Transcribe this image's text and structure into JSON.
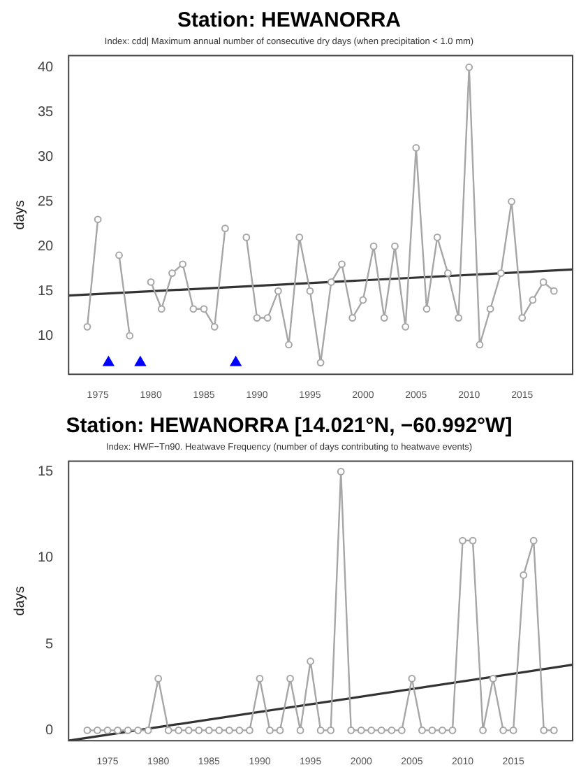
{
  "chart_data": [
    {
      "type": "line",
      "title": "Station: HEWANORRA",
      "subtitle": "Index: cdd| Maximum annual number of consecutive dry days (when precipitation < 1.0 mm)",
      "ylabel": "days",
      "x": [
        1974,
        1975,
        1976,
        1977,
        1978,
        1979,
        1980,
        1981,
        1982,
        1983,
        1984,
        1985,
        1986,
        1987,
        1988,
        1989,
        1990,
        1991,
        1992,
        1993,
        1994,
        1995,
        1996,
        1997,
        1998,
        1999,
        2000,
        2001,
        2002,
        2003,
        2004,
        2005,
        2006,
        2007,
        2008,
        2009,
        2010,
        2011,
        2012,
        2013,
        2014,
        2015,
        2016,
        2017,
        2018
      ],
      "series": [
        {
          "type": "line",
          "color": "#a6a6a6",
          "marker": "circle",
          "values": [
            11,
            23,
            null,
            19,
            10,
            null,
            16,
            13,
            17,
            18,
            13,
            13,
            11,
            22,
            null,
            21,
            12,
            12,
            15,
            9,
            21,
            15,
            7,
            16,
            18,
            12,
            14,
            20,
            12,
            20,
            11,
            31,
            13,
            21,
            17,
            12,
            40,
            9,
            13,
            17,
            25,
            12,
            14,
            16,
            15
          ]
        },
        {
          "type": "line",
          "color": "#333333",
          "marker": "none",
          "x": [
            1972.24,
            2019.76
          ],
          "values": [
            14.5,
            17.4
          ]
        },
        {
          "type": "scatter",
          "color": "#0000ff",
          "marker": "triangle",
          "x": [
            1976,
            1979,
            1988
          ],
          "values": [
            7,
            7,
            7
          ]
        }
      ],
      "xlim": [
        1972.24,
        2019.76
      ],
      "xticks": [
        1975,
        1980,
        1985,
        1990,
        1995,
        2000,
        2005,
        2010,
        2015
      ],
      "ylim": [
        5.7,
        41.3
      ],
      "yticks": [
        10,
        15,
        20,
        25,
        30,
        35,
        40
      ],
      "grid": false,
      "legend": false
    },
    {
      "type": "line",
      "title": "Station: HEWANORRA [14.021°N, −60.992°W]",
      "subtitle": "Index: HWF−Tn90. Heatwave Frequency (number of days contributing to heatwave events)",
      "ylabel": "days",
      "x": [
        1973,
        1974,
        1975,
        1976,
        1977,
        1978,
        1979,
        1980,
        1981,
        1982,
        1983,
        1984,
        1985,
        1986,
        1987,
        1988,
        1989,
        1990,
        1991,
        1992,
        1993,
        1994,
        1995,
        1996,
        1997,
        1998,
        1999,
        2000,
        2001,
        2002,
        2003,
        2004,
        2005,
        2006,
        2007,
        2008,
        2009,
        2010,
        2011,
        2012,
        2013,
        2014,
        2015,
        2016,
        2017,
        2018,
        2019
      ],
      "series": [
        {
          "type": "line",
          "color": "#a6a6a6",
          "marker": "circle",
          "values": [
            0,
            0,
            0,
            0,
            0,
            0,
            0,
            3,
            0,
            0,
            0,
            0,
            0,
            0,
            0,
            0,
            0,
            3,
            0,
            0,
            3,
            0,
            4,
            0,
            0,
            15,
            0,
            0,
            0,
            0,
            0,
            0,
            3,
            0,
            0,
            0,
            0,
            11,
            11,
            0,
            3,
            0,
            0,
            9,
            11,
            0,
            0
          ]
        },
        {
          "type": "line",
          "color": "#333333",
          "marker": "none",
          "x": [
            1971.16,
            2020.84
          ],
          "values": [
            -0.6,
            3.8
          ]
        }
      ],
      "xlim": [
        1971.16,
        2020.84
      ],
      "xticks": [
        1975,
        1980,
        1985,
        1990,
        1995,
        2000,
        2005,
        2010,
        2015
      ],
      "ylim": [
        -0.6,
        15.6
      ],
      "yticks": [
        0,
        5,
        10,
        15
      ],
      "grid": false,
      "legend": false
    }
  ]
}
